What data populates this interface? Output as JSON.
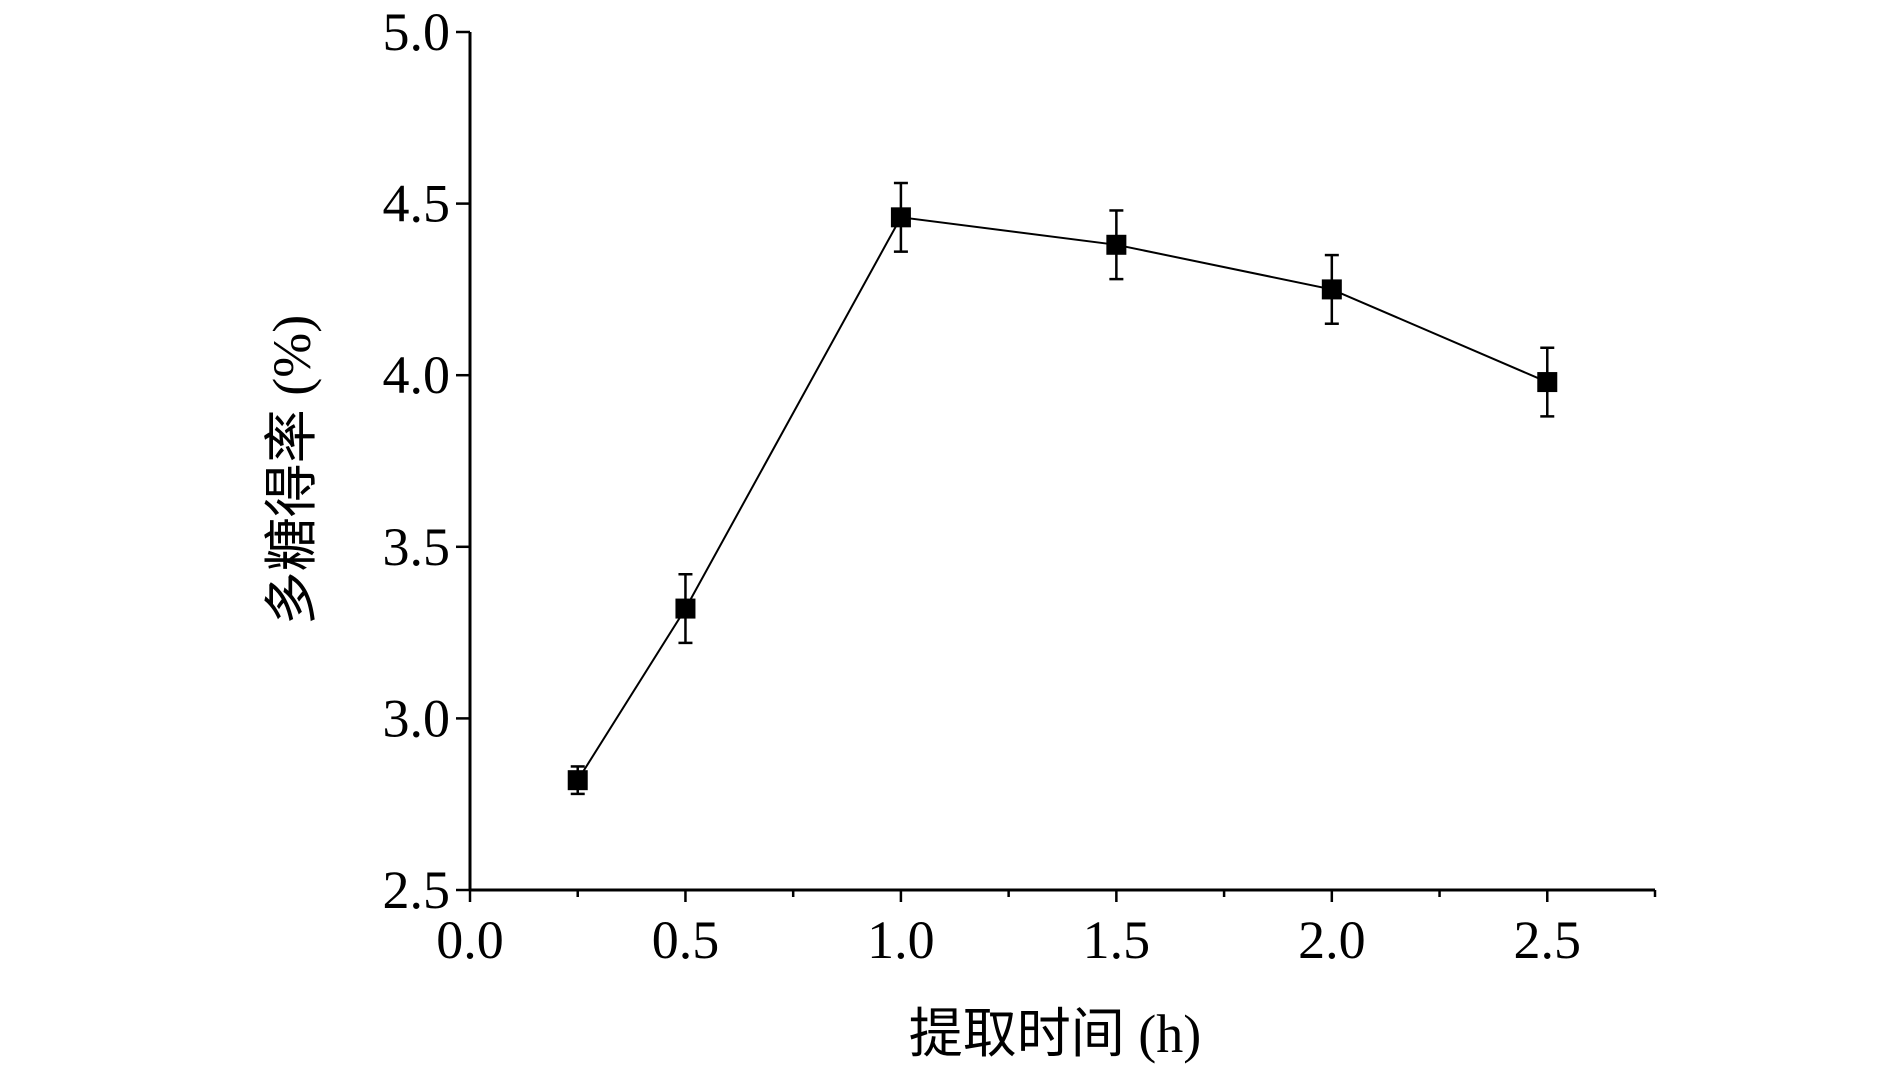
{
  "chart_data": {
    "type": "line",
    "x": [
      0.25,
      0.5,
      1.0,
      1.5,
      2.0,
      2.5
    ],
    "series": [
      {
        "values": [
          2.82,
          3.32,
          4.46,
          4.38,
          4.25,
          3.98
        ],
        "errors": [
          0.04,
          0.1,
          0.1,
          0.1,
          0.1,
          0.1
        ],
        "color": "#000000",
        "marker": "square"
      }
    ],
    "xlabel": "提取时间 (h)",
    "ylabel": "多糖得率 (%)",
    "xlim": [
      0.0,
      2.75
    ],
    "ylim": [
      2.5,
      5.0
    ],
    "xticks": [
      "0.0",
      "0.5",
      "1.0",
      "1.5",
      "2.0",
      "2.5"
    ],
    "yticks": [
      "2.5",
      "3.0",
      "3.5",
      "4.0",
      "4.5",
      "5.0"
    ],
    "grid": false,
    "legend": "none"
  }
}
